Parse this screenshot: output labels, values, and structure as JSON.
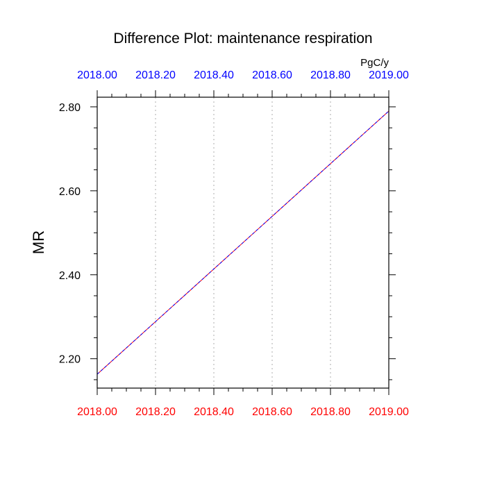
{
  "chart_data": {
    "type": "line",
    "title": "Difference Plot: maintenance respiration",
    "ylabel": "MR",
    "units": "PgC/y",
    "xlim": [
      2018.0,
      2019.0
    ],
    "ylim": [
      2.13,
      2.823
    ],
    "x_ticks": [
      "2018.00",
      "2018.20",
      "2018.40",
      "2018.60",
      "2018.80",
      "2019.00"
    ],
    "x_tick_values": [
      2018.0,
      2018.2,
      2018.4,
      2018.6,
      2018.8,
      2019.0
    ],
    "y_ticks": [
      "2.20",
      "2.40",
      "2.60",
      "2.80"
    ],
    "y_tick_values": [
      2.2,
      2.4,
      2.6,
      2.8
    ],
    "grid": "vertical dotted at x ticks",
    "colors": {
      "top_axis": "#0000ff",
      "bottom_axis": "#ff0000",
      "series_a": "#ff0000",
      "series_b": "#0000ff",
      "text": "#000000"
    },
    "series": [
      {
        "x": [
          2018.0,
          2019.0
        ],
        "values": [
          2.163,
          2.79
        ],
        "color": "#ff0000"
      },
      {
        "x": [
          2018.0,
          2019.0
        ],
        "values": [
          2.163,
          2.79
        ],
        "color": "#0000ff",
        "dashed": true
      }
    ]
  }
}
